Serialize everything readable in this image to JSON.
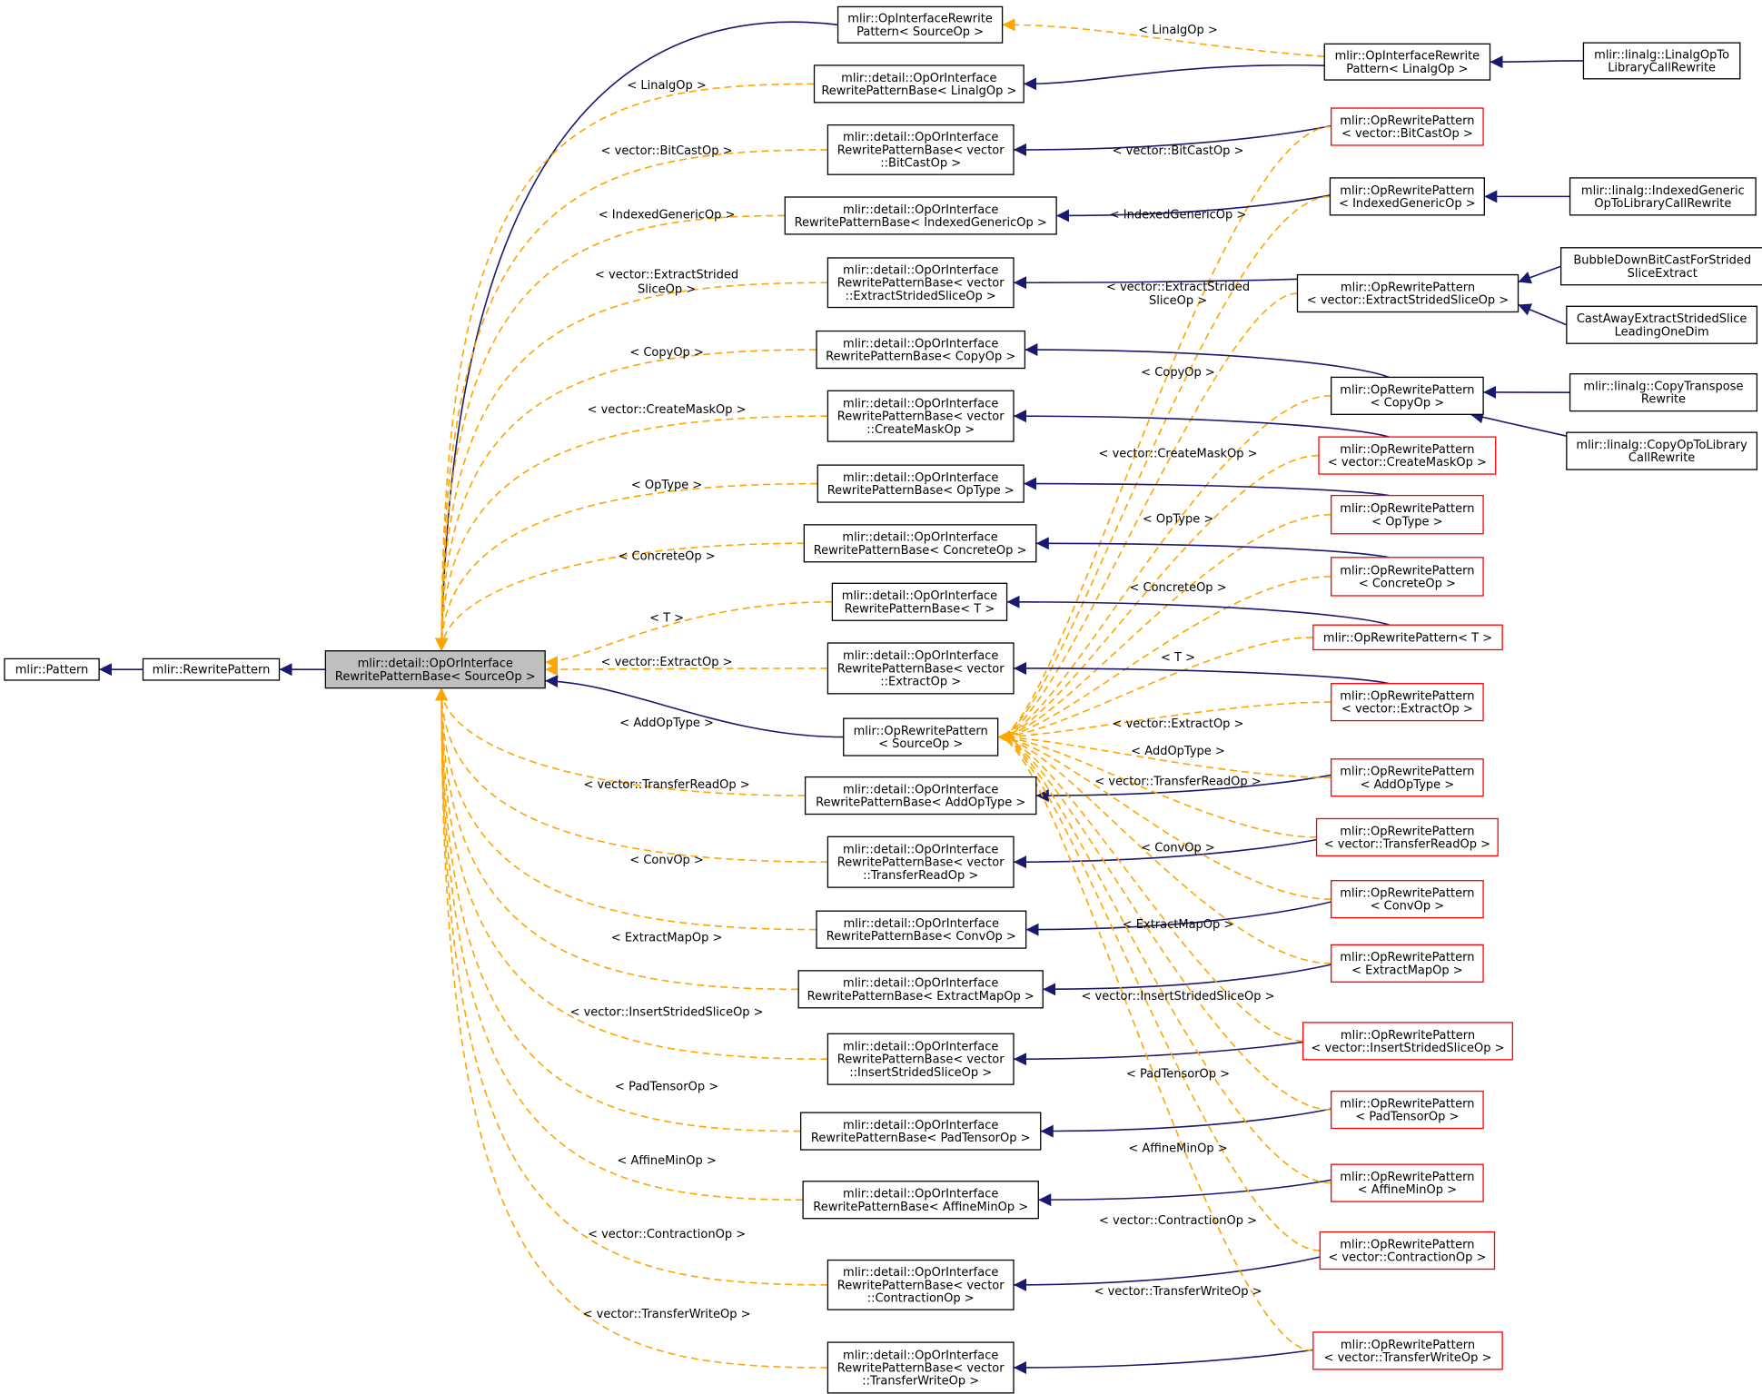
{
  "nodes": {
    "pattern": [
      "mlir::Pattern"
    ],
    "rewrite_pattern": [
      "mlir::RewritePattern"
    ],
    "base_source": [
      "mlir::detail::OpOrInterface",
      "RewritePatternBase< SourceOp >"
    ],
    "oi_rewrite_source": [
      "mlir::OpInterfaceRewrite",
      "Pattern< SourceOp >"
    ],
    "base_linalg": [
      "mlir::detail::OpOrInterface",
      "RewritePatternBase< LinalgOp >"
    ],
    "base_bitcast": [
      "mlir::detail::OpOrInterface",
      "RewritePatternBase< vector",
      "::BitCastOp >"
    ],
    "base_indexedgeneric": [
      "mlir::detail::OpOrInterface",
      "RewritePatternBase< IndexedGenericOp >"
    ],
    "base_extractstrided": [
      "mlir::detail::OpOrInterface",
      "RewritePatternBase< vector",
      "::ExtractStridedSliceOp >"
    ],
    "base_copy": [
      "mlir::detail::OpOrInterface",
      "RewritePatternBase< CopyOp >"
    ],
    "base_createmask": [
      "mlir::detail::OpOrInterface",
      "RewritePatternBase< vector",
      "::CreateMaskOp >"
    ],
    "base_optype": [
      "mlir::detail::OpOrInterface",
      "RewritePatternBase< OpType >"
    ],
    "base_concrete": [
      "mlir::detail::OpOrInterface",
      "RewritePatternBase< ConcreteOp >"
    ],
    "base_t": [
      "mlir::detail::OpOrInterface",
      "RewritePatternBase< T >"
    ],
    "base_extract": [
      "mlir::detail::OpOrInterface",
      "RewritePatternBase< vector",
      "::ExtractOp >"
    ],
    "op_rewrite_source": [
      "mlir::OpRewritePattern",
      "< SourceOp >"
    ],
    "base_addoptype": [
      "mlir::detail::OpOrInterface",
      "RewritePatternBase< AddOpType >"
    ],
    "base_transferread": [
      "mlir::detail::OpOrInterface",
      "RewritePatternBase< vector",
      "::TransferReadOp >"
    ],
    "base_conv": [
      "mlir::detail::OpOrInterface",
      "RewritePatternBase< ConvOp >"
    ],
    "base_extractmap": [
      "mlir::detail::OpOrInterface",
      "RewritePatternBase< ExtractMapOp >"
    ],
    "base_insertstrided": [
      "mlir::detail::OpOrInterface",
      "RewritePatternBase< vector",
      "::InsertStridedSliceOp >"
    ],
    "base_padtensor": [
      "mlir::detail::OpOrInterface",
      "RewritePatternBase< PadTensorOp >"
    ],
    "base_affinemin": [
      "mlir::detail::OpOrInterface",
      "RewritePatternBase< AffineMinOp >"
    ],
    "base_contraction": [
      "mlir::detail::OpOrInterface",
      "RewritePatternBase< vector",
      "::ContractionOp >"
    ],
    "base_transferwrite": [
      "mlir::detail::OpOrInterface",
      "RewritePatternBase< vector",
      "::TransferWriteOp >"
    ],
    "oi_rewrite_linalg": [
      "mlir::OpInterfaceRewrite",
      "Pattern< LinalgOp >"
    ],
    "op_bitcast": [
      "mlir::OpRewritePattern",
      "< vector::BitCastOp >"
    ],
    "op_indexedgeneric": [
      "mlir::OpRewritePattern",
      "< IndexedGenericOp >"
    ],
    "op_extractstrided": [
      "mlir::OpRewritePattern",
      "< vector::ExtractStridedSliceOp >"
    ],
    "op_copy": [
      "mlir::OpRewritePattern",
      "< CopyOp >"
    ],
    "op_createmask": [
      "mlir::OpRewritePattern",
      "< vector::CreateMaskOp >"
    ],
    "op_optype": [
      "mlir::OpRewritePattern",
      "< OpType >"
    ],
    "op_concrete": [
      "mlir::OpRewritePattern",
      "< ConcreteOp >"
    ],
    "op_t": [
      "mlir::OpRewritePattern< T >"
    ],
    "op_extract": [
      "mlir::OpRewritePattern",
      "< vector::ExtractOp >"
    ],
    "op_addoptype": [
      "mlir::OpRewritePattern",
      "< AddOpType >"
    ],
    "op_transferread": [
      "mlir::OpRewritePattern",
      "< vector::TransferReadOp >"
    ],
    "op_conv": [
      "mlir::OpRewritePattern",
      "< ConvOp >"
    ],
    "op_extractmap": [
      "mlir::OpRewritePattern",
      "< ExtractMapOp >"
    ],
    "op_insertstrided": [
      "mlir::OpRewritePattern",
      "< vector::InsertStridedSliceOp >"
    ],
    "op_padtensor": [
      "mlir::OpRewritePattern",
      "< PadTensorOp >"
    ],
    "op_affinemin": [
      "mlir::OpRewritePattern",
      "< AffineMinOp >"
    ],
    "op_contraction": [
      "mlir::OpRewritePattern",
      "< vector::ContractionOp >"
    ],
    "op_transferwrite": [
      "mlir::OpRewritePattern",
      "< vector::TransferWriteOp >"
    ],
    "linalg_to_libcall": [
      "mlir::linalg::LinalgOpTo",
      "LibraryCallRewrite"
    ],
    "indexedgeneric_to_libcall": [
      "mlir::linalg::IndexedGeneric",
      "OpToLibraryCallRewrite"
    ],
    "bubble_down": [
      "BubbleDownBitCastForStrided",
      "SliceExtract"
    ],
    "cast_away": [
      "CastAwayExtractStridedSlice",
      "LeadingOneDim"
    ],
    "copy_transpose": [
      "mlir::linalg::CopyTranspose",
      "Rewrite"
    ],
    "copy_to_libcall": [
      "mlir::linalg::CopyOpToLibrary",
      "CallRewrite"
    ]
  },
  "edge_labels": {
    "linalg": "< LinalgOp >",
    "bitcast": "< vector::BitCastOp >",
    "indexedgeneric": "< IndexedGenericOp >",
    "extractstrided": [
      "< vector::ExtractStrided",
      "SliceOp >"
    ],
    "copy": "< CopyOp >",
    "createmask": "< vector::CreateMaskOp >",
    "optype": "< OpType >",
    "concrete": "< ConcreteOp >",
    "t": "< T >",
    "extract": "< vector::ExtractOp >",
    "addoptype": "< AddOpType >",
    "transferread": "< vector::TransferReadOp >",
    "conv": "< ConvOp >",
    "extractmap": "< ExtractMapOp >",
    "insertstrided": "< vector::InsertStridedSliceOp >",
    "padtensor": "< PadTensorOp >",
    "affinemin": "< AffineMinOp >",
    "contraction": "< vector::ContractionOp >",
    "transferwrite": "< vector::TransferWriteOp >"
  },
  "colors": {
    "inheritance_edge": "#191970",
    "template_edge": "#ffa500",
    "highlight_node_fill": "#bfbfbf",
    "incomplete_node_border": "#ff0000"
  }
}
